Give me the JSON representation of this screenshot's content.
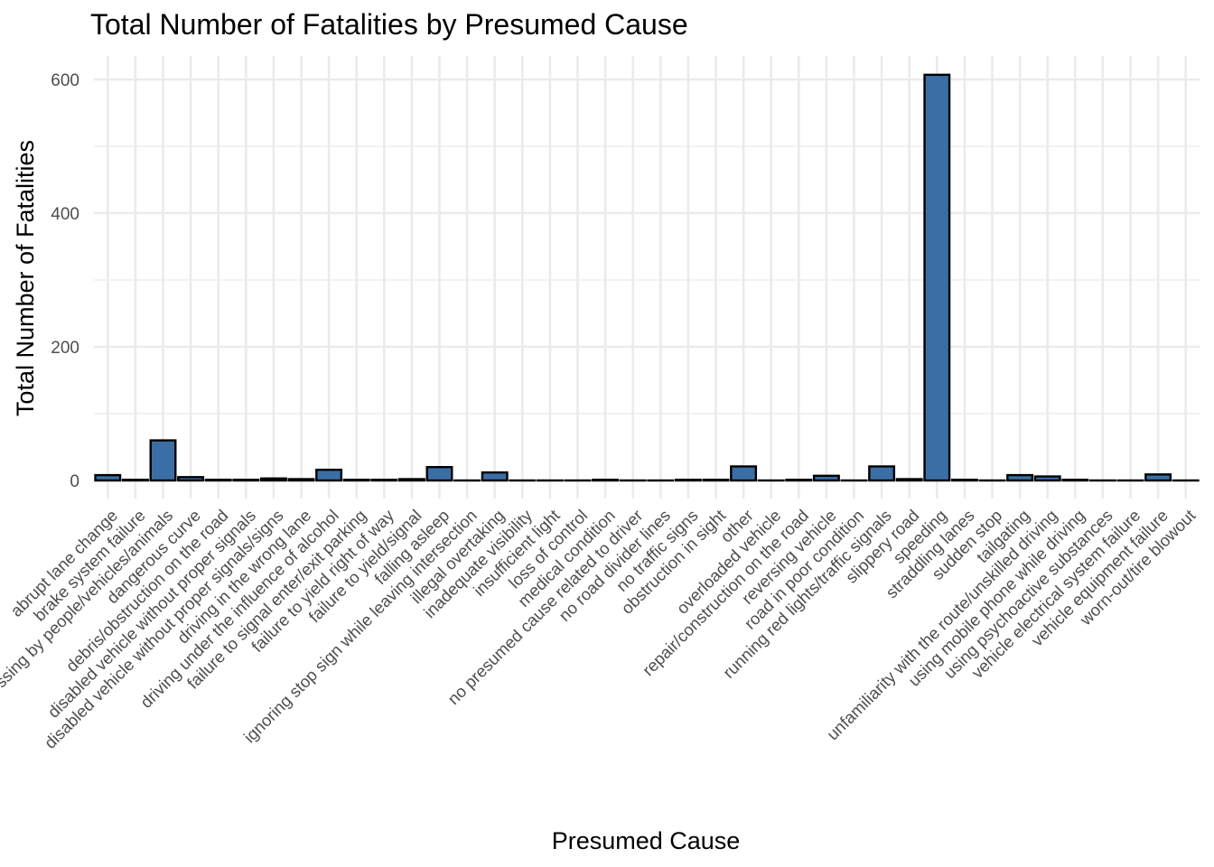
{
  "chart_data": {
    "type": "bar",
    "title": "Total Number of Fatalities by Presumed Cause",
    "xlabel": "Presumed Cause",
    "ylabel": "Total Number of Fatalities",
    "ylim": [
      0,
      640
    ],
    "yticks": [
      "0",
      "200",
      "400",
      "600"
    ],
    "grid": true,
    "bar_color": "#3a6ea5",
    "bar_outline_color": "#000000",
    "categories": [
      "abrupt lane change",
      "brake system failure",
      "crossing by people/vehicles/animals",
      "dangerous curve",
      "debris/obstruction on the road",
      "disabled vehicle without proper signals",
      "disabled vehicle without proper signals/signs",
      "driving in the wrong lane",
      "driving under the influence of alcohol",
      "failure to signal enter/exit parking",
      "failure to yield right of way",
      "failure to yield/signal",
      "falling asleep",
      "ignoring stop sign while leaving intersection",
      "illegal overtaking",
      "inadequate visibility",
      "insufficient light",
      "loss of control",
      "medical condition",
      "no presumed cause related to driver",
      "no road divider lines",
      "no traffic signs",
      "obstruction in sight",
      "other",
      "overloaded vehicle",
      "repair/construction on the road",
      "reversing vehicle",
      "road in poor condition",
      "running red lights/traffic signals",
      "slippery road",
      "speeding",
      "straddling lanes",
      "sudden stop",
      "tailgating",
      "unfamiliarity with the route/unskilled driving",
      "using mobile phone while driving",
      "using psychoactive substances",
      "vehicle electrical system failure",
      "vehicle equipment failure",
      "worn-out/tire blowout"
    ],
    "values": [
      8,
      1,
      60,
      5,
      1,
      1,
      3,
      2,
      16,
      1,
      1,
      2,
      20,
      0,
      12,
      0,
      0,
      0,
      1,
      0,
      0,
      1,
      1,
      21,
      0,
      1,
      7,
      0,
      21,
      2,
      607,
      1,
      0,
      8,
      6,
      1,
      0,
      0,
      9,
      0
    ]
  }
}
